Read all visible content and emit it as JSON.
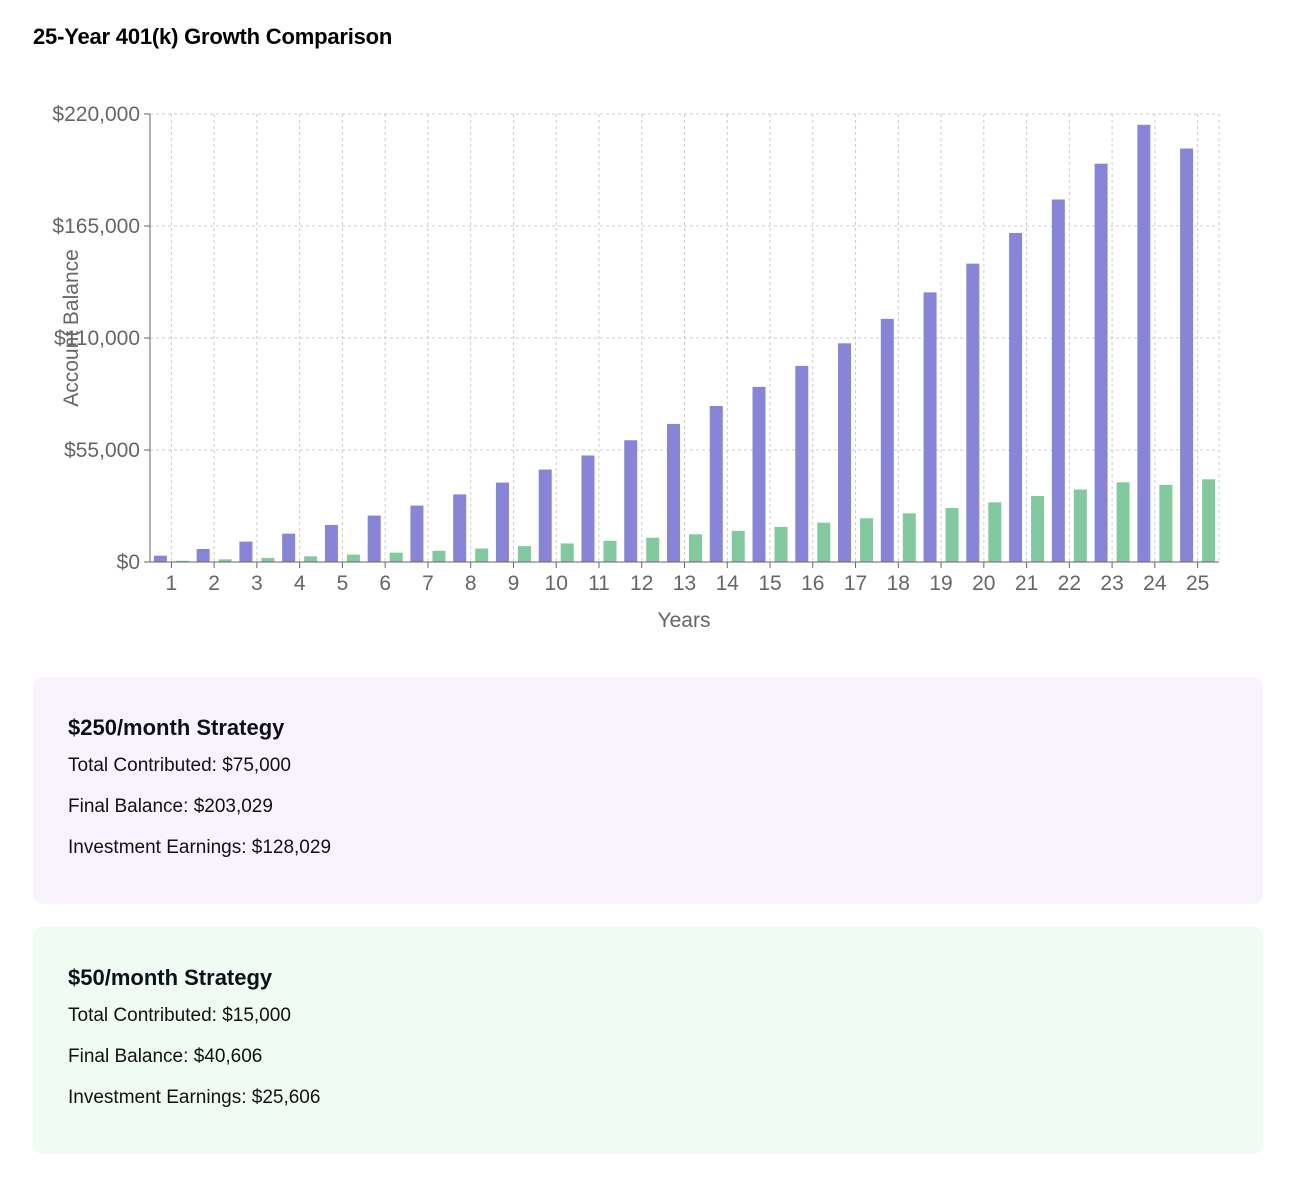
{
  "title": "25-Year 401(k) Growth Comparison",
  "colors": {
    "strategy_250": "#8884d8",
    "strategy_50": "#82ca9d",
    "card_250_bg": "#f8f3fe",
    "card_50_bg": "#effbf3",
    "grid": "#cccccc",
    "axis": "#666666"
  },
  "chart_data": {
    "type": "bar",
    "xlabel": "Years",
    "ylabel": "Account Balance",
    "ylim": [
      0,
      220000
    ],
    "yticks": [
      0,
      55000,
      110000,
      165000,
      220000
    ],
    "ytick_labels": [
      "$0",
      "$55,000",
      "$110,000",
      "$165,000",
      "$220,000"
    ],
    "grid": true,
    "categories": [
      "1",
      "2",
      "3",
      "4",
      "5",
      "6",
      "7",
      "8",
      "9",
      "10",
      "11",
      "12",
      "13",
      "14",
      "15",
      "16",
      "17",
      "18",
      "19",
      "20",
      "21",
      "22",
      "23",
      "24",
      "25"
    ],
    "series": [
      {
        "color": "#8884d8",
        "values": [
          3100,
          6400,
          10000,
          13900,
          18200,
          22800,
          27700,
          33200,
          39000,
          45400,
          52300,
          59800,
          67800,
          76600,
          86000,
          96300,
          107400,
          119400,
          132400,
          146500,
          161600,
          178000,
          195600,
          214700,
          203029
        ]
      },
      {
        "color": "#82ca9d",
        "values": [
          600,
          1300,
          2000,
          2800,
          3600,
          4600,
          5500,
          6600,
          7800,
          9100,
          10400,
          11900,
          13600,
          15300,
          17200,
          19300,
          21500,
          23900,
          26500,
          29300,
          32400,
          35600,
          39100,
          37900,
          40606
        ]
      }
    ]
  },
  "cards": [
    {
      "heading": "$250/month Strategy",
      "contributed_label": "Total Contributed:",
      "contributed_value": "$75,000",
      "final_label": "Final Balance:",
      "final_value": "$203,029",
      "earnings_label": "Investment Earnings:",
      "earnings_value": "$128,029"
    },
    {
      "heading": "$50/month Strategy",
      "contributed_label": "Total Contributed:",
      "contributed_value": "$15,000",
      "final_label": "Final Balance:",
      "final_value": "$40,606",
      "earnings_label": "Investment Earnings:",
      "earnings_value": "$25,606"
    }
  ]
}
